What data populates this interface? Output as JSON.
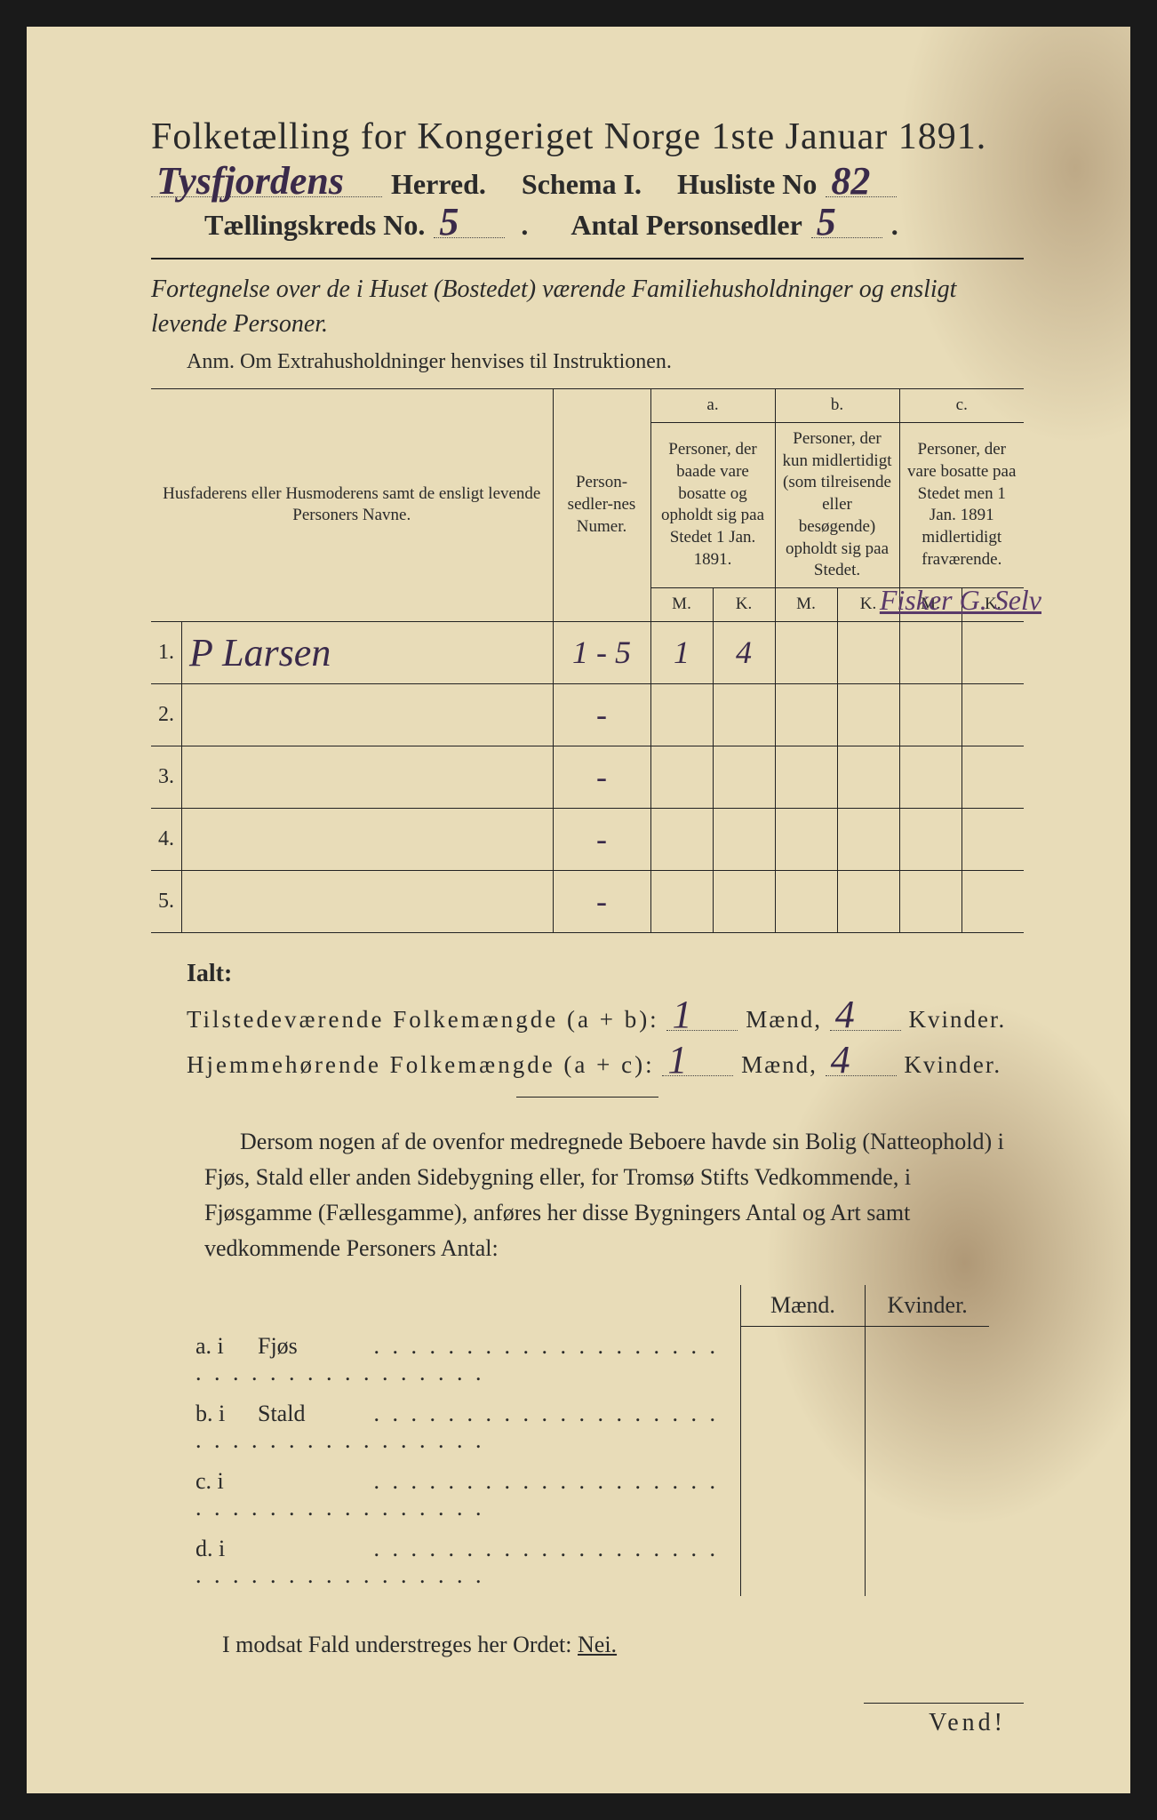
{
  "background_color": "#e8dcb8",
  "text_color": "#2a2a2a",
  "handwriting_color": "#3a2a4a",
  "title": "Folketælling for Kongeriget Norge 1ste Januar 1891.",
  "header": {
    "herred_value": "Tysfjordens",
    "herred_label": "Herred.",
    "schema_label": "Schema I.",
    "husliste_label": "Husliste No",
    "husliste_value": "82",
    "kreds_label": "Tællingskreds No.",
    "kreds_value": "5",
    "personsedler_label": "Antal Personsedler",
    "personsedler_value": "5"
  },
  "subtitle": "Fortegnelse over de i Huset (Bostedet) værende Familiehusholdninger og ensligt levende Personer.",
  "anm": "Anm. Om Extrahusholdninger henvises til Instruktionen.",
  "table": {
    "col_name": "Husfaderens eller Husmoderens samt de ensligt levende Personers Navne.",
    "col_num": "Person-sedler-nes Numer.",
    "col_a_label": "a.",
    "col_a": "Personer, der baade vare bosatte og opholdt sig paa Stedet 1 Jan. 1891.",
    "col_b_label": "b.",
    "col_b": "Personer, der kun midlertidigt (som tilreisende eller besøgende) opholdt sig paa Stedet.",
    "col_c_label": "c.",
    "col_c": "Personer, der vare bosatte paa Stedet men 1 Jan. 1891 midlertidigt fraværende.",
    "mk_m": "M.",
    "mk_k": "K.",
    "rows": [
      {
        "n": "1.",
        "name": "P Larsen",
        "num": "1 - 5",
        "a_m": "1",
        "a_k": "4",
        "b_m": "",
        "b_k": "",
        "c_m": "",
        "c_k": ""
      },
      {
        "n": "2.",
        "name": "",
        "num": "-",
        "a_m": "",
        "a_k": "",
        "b_m": "",
        "b_k": "",
        "c_m": "",
        "c_k": ""
      },
      {
        "n": "3.",
        "name": "",
        "num": "-",
        "a_m": "",
        "a_k": "",
        "b_m": "",
        "b_k": "",
        "c_m": "",
        "c_k": ""
      },
      {
        "n": "4.",
        "name": "",
        "num": "-",
        "a_m": "",
        "a_k": "",
        "b_m": "",
        "b_k": "",
        "c_m": "",
        "c_k": ""
      },
      {
        "n": "5.",
        "name": "",
        "num": "-",
        "a_m": "",
        "a_k": "",
        "b_m": "",
        "b_k": "",
        "c_m": "",
        "c_k": ""
      }
    ],
    "margin_note": "Fisker G. Selv"
  },
  "totals": {
    "ialt": "Ialt:",
    "line1_label": "Tilstedeværende Folkemængde (a + b):",
    "line1_m": "1",
    "line1_k": "4",
    "line2_label": "Hjemmehørende Folkemængde (a + c):",
    "line2_m": "1",
    "line2_k": "4",
    "maend": "Mænd,",
    "kvinder": "Kvinder."
  },
  "paragraph": "Dersom nogen af de ovenfor medregnede Beboere havde sin Bolig (Natteophold) i Fjøs, Stald eller anden Sidebygning eller, for Tromsø Stifts Vedkommende, i Fjøsgamme (Fællesgamme), anføres her disse Bygningers Antal og Art samt vedkommende Personers Antal:",
  "lower_table": {
    "maend": "Mænd.",
    "kvinder": "Kvinder.",
    "rows": [
      {
        "label": "a.  i",
        "type": "Fjøs"
      },
      {
        "label": "b.  i",
        "type": "Stald"
      },
      {
        "label": "c.  i",
        "type": ""
      },
      {
        "label": "d.  i",
        "type": ""
      }
    ]
  },
  "nei_line": "I modsat Fald understreges her Ordet: ",
  "nei": "Nei.",
  "vend": "Vend!"
}
